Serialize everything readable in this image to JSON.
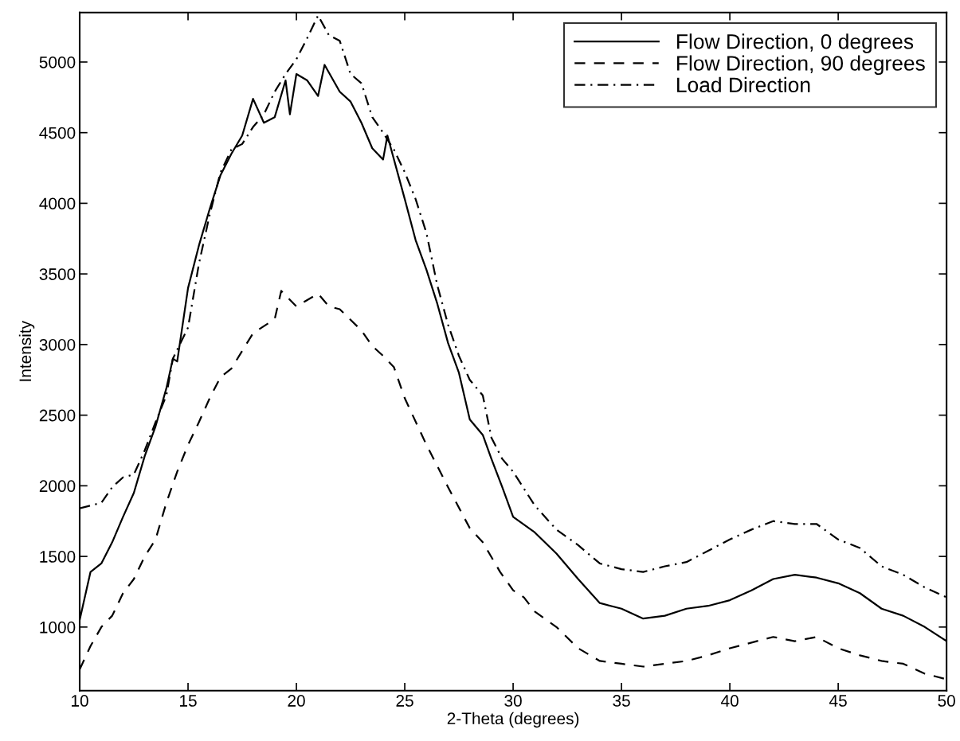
{
  "chart_data": {
    "type": "line",
    "xlabel": "2-Theta (degrees)",
    "ylabel": "Intensity",
    "xlim": [
      10,
      50
    ],
    "ylim": [
      550,
      5350
    ],
    "xticks": [
      10,
      15,
      20,
      25,
      30,
      35,
      40,
      45,
      50
    ],
    "yticks": [
      1000,
      1500,
      2000,
      2500,
      3000,
      3500,
      4000,
      4500,
      5000
    ],
    "grid": false,
    "legend": "top right",
    "marker": "none",
    "series": [
      {
        "name": "Flow Direction, 0 degrees",
        "color": "#000000",
        "line_style": "solid",
        "x": [
          10,
          10.5,
          11,
          11.5,
          12,
          12.5,
          13,
          13.5,
          14,
          14.3,
          14.5,
          15,
          15.5,
          16,
          16.5,
          17,
          17.5,
          18,
          18.5,
          19,
          19.5,
          19.7,
          20,
          20.5,
          21,
          21.3,
          22,
          22.5,
          23,
          23.5,
          24,
          24.2,
          25,
          25.5,
          26,
          26.5,
          27,
          27.5,
          28,
          28.6,
          29,
          29.5,
          30,
          31,
          32,
          33,
          34,
          35,
          36,
          37,
          38,
          39,
          40,
          41,
          42,
          43,
          44,
          45,
          46,
          47,
          48,
          49,
          50
        ],
        "values": [
          1050,
          1390,
          1450,
          1600,
          1780,
          1950,
          2210,
          2420,
          2690,
          2900,
          2880,
          3400,
          3700,
          3960,
          4200,
          4350,
          4480,
          4740,
          4570,
          4610,
          4870,
          4630,
          4915,
          4870,
          4760,
          4980,
          4790,
          4720,
          4570,
          4390,
          4310,
          4480,
          4030,
          3740,
          3530,
          3290,
          3010,
          2800,
          2470,
          2360,
          2190,
          1990,
          1780,
          1670,
          1520,
          1340,
          1170,
          1130,
          1060,
          1080,
          1130,
          1150,
          1190,
          1260,
          1340,
          1370,
          1350,
          1310,
          1240,
          1130,
          1080,
          1000,
          900
        ]
      },
      {
        "name": "Flow Direction, 90 degrees",
        "color": "#000000",
        "line_style": "dashed",
        "x": [
          10,
          10.5,
          11,
          11.5,
          12,
          12.5,
          13,
          13.5,
          14,
          14.5,
          15,
          15.5,
          16,
          16.5,
          17,
          18,
          19,
          19.3,
          20,
          21,
          21.5,
          22,
          23,
          23.5,
          24,
          24.5,
          25,
          26,
          27,
          28,
          28.6,
          29.4,
          30,
          30.5,
          31,
          32,
          33,
          34,
          35,
          36,
          37,
          38,
          39,
          40,
          41,
          42,
          43,
          44,
          45,
          46,
          47,
          48,
          49,
          50
        ],
        "values": [
          700,
          865,
          1000,
          1080,
          1240,
          1340,
          1500,
          1620,
          1880,
          2100,
          2290,
          2450,
          2620,
          2770,
          2830,
          3080,
          3180,
          3380,
          3270,
          3360,
          3270,
          3250,
          3100,
          2990,
          2920,
          2840,
          2620,
          2290,
          1990,
          1700,
          1600,
          1390,
          1260,
          1210,
          1110,
          1000,
          850,
          760,
          740,
          720,
          740,
          760,
          800,
          850,
          890,
          930,
          900,
          930,
          850,
          800,
          760,
          740,
          670,
          630
        ]
      },
      {
        "name": "Load Direction",
        "color": "#000000",
        "line_style": "dashdot",
        "x": [
          10,
          10.5,
          11,
          11.5,
          12,
          12.5,
          13,
          13.5,
          14,
          14.3,
          15,
          15.5,
          16,
          16.5,
          17,
          17.5,
          18,
          18.5,
          19,
          19.5,
          20,
          20.5,
          21,
          21.5,
          22,
          22.5,
          23,
          23.5,
          24,
          24.5,
          25,
          25.5,
          26,
          26.5,
          27,
          27.5,
          28,
          28.6,
          29,
          29.5,
          30,
          31,
          32,
          33,
          34,
          35,
          36,
          37,
          38,
          39,
          40,
          41,
          42,
          43,
          44,
          45,
          46,
          47,
          48,
          49,
          50
        ],
        "values": [
          1840,
          1860,
          1880,
          1990,
          2060,
          2080,
          2250,
          2450,
          2640,
          2900,
          3120,
          3570,
          3920,
          4220,
          4380,
          4420,
          4540,
          4630,
          4790,
          4915,
          5020,
          5170,
          5330,
          5190,
          5150,
          4915,
          4850,
          4610,
          4500,
          4380,
          4220,
          4030,
          3790,
          3420,
          3140,
          2920,
          2750,
          2640,
          2340,
          2190,
          2100,
          1860,
          1690,
          1580,
          1450,
          1410,
          1390,
          1430,
          1460,
          1540,
          1620,
          1690,
          1750,
          1730,
          1730,
          1620,
          1560,
          1430,
          1370,
          1280,
          1210
        ]
      }
    ]
  }
}
